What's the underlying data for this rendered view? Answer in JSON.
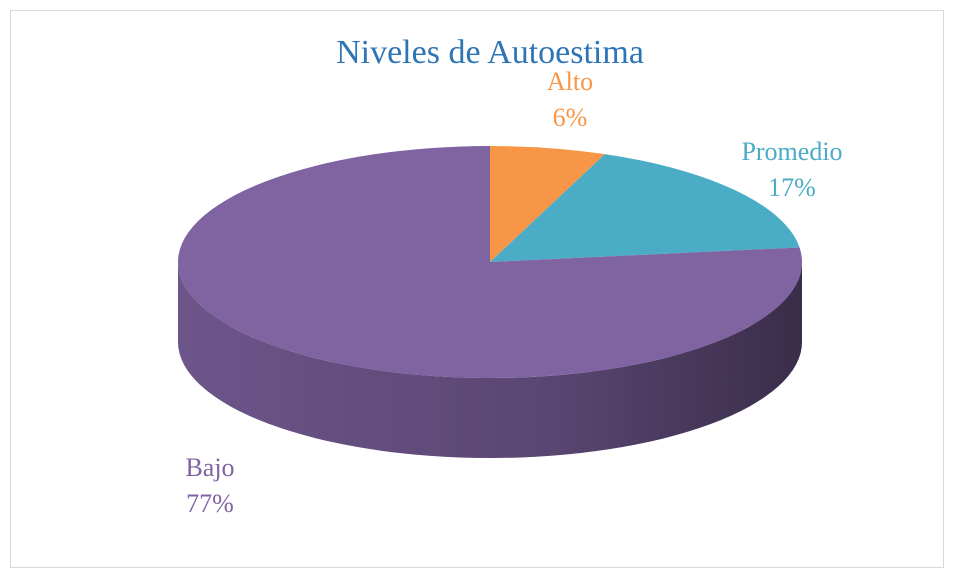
{
  "chart_data": {
    "type": "pie",
    "title": "Niveles de Autoestima",
    "categories": [
      "Alto",
      "Promedio",
      "Bajo"
    ],
    "values": [
      6,
      17,
      77
    ],
    "value_labels": [
      "6%",
      "17%",
      "77%"
    ],
    "colors": [
      "#f79646",
      "#4bacc6",
      "#8064a2"
    ]
  }
}
